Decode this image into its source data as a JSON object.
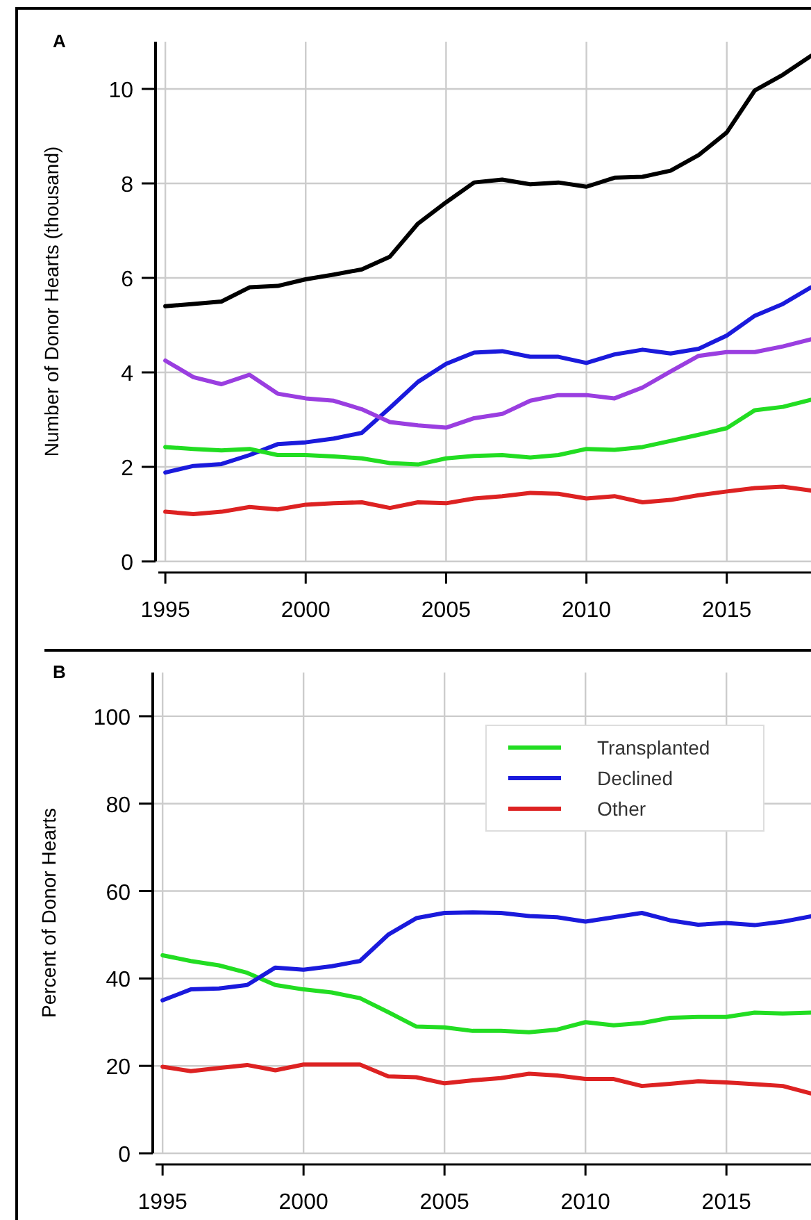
{
  "chart_data": [
    {
      "type": "line",
      "title": "A",
      "ylabel": "Number of Donor Hearts (thousand)",
      "x": [
        1995,
        1996,
        1997,
        1998,
        1999,
        2000,
        2001,
        2002,
        2003,
        2004,
        2005,
        2006,
        2007,
        2008,
        2009,
        2010,
        2011,
        2012,
        2013,
        2014,
        2015,
        2016,
        2017,
        2018
      ],
      "xlim": [
        1994.75,
        2018
      ],
      "xticks": [
        1995,
        2000,
        2005,
        2010,
        2015
      ],
      "ylim": [
        0,
        11
      ],
      "yticks": [
        0,
        2,
        4,
        6,
        8,
        10
      ],
      "grid": true,
      "legend": false,
      "series": [
        {
          "color": "#000000",
          "values": [
            5.4,
            5.45,
            5.5,
            5.8,
            5.83,
            5.97,
            6.07,
            6.18,
            6.45,
            7.15,
            7.6,
            8.02,
            8.08,
            7.98,
            8.02,
            7.93,
            8.12,
            8.14,
            8.27,
            8.6,
            9.08,
            9.97,
            10.3,
            10.7
          ]
        },
        {
          "color": "#1a1adc",
          "values": [
            1.88,
            2.02,
            2.06,
            2.25,
            2.48,
            2.52,
            2.6,
            2.72,
            3.25,
            3.8,
            4.18,
            4.42,
            4.45,
            4.33,
            4.33,
            4.2,
            4.38,
            4.48,
            4.4,
            4.5,
            4.78,
            5.2,
            5.45,
            5.8
          ]
        },
        {
          "color": "#9a3ee0",
          "values": [
            4.25,
            3.9,
            3.75,
            3.95,
            3.55,
            3.45,
            3.4,
            3.22,
            2.95,
            2.88,
            2.83,
            3.03,
            3.12,
            3.4,
            3.52,
            3.52,
            3.45,
            3.68,
            4.02,
            4.35,
            4.43,
            4.43,
            4.55,
            4.7
          ]
        },
        {
          "color": "#22dd22",
          "values": [
            2.42,
            2.38,
            2.35,
            2.38,
            2.25,
            2.25,
            2.22,
            2.18,
            2.08,
            2.05,
            2.18,
            2.23,
            2.25,
            2.2,
            2.25,
            2.38,
            2.36,
            2.42,
            2.55,
            2.68,
            2.82,
            3.2,
            3.27,
            3.42
          ]
        },
        {
          "color": "#dd2222",
          "values": [
            1.05,
            1.0,
            1.05,
            1.15,
            1.1,
            1.2,
            1.23,
            1.25,
            1.13,
            1.25,
            1.23,
            1.33,
            1.38,
            1.45,
            1.43,
            1.33,
            1.38,
            1.25,
            1.3,
            1.4,
            1.48,
            1.55,
            1.58,
            1.5
          ]
        }
      ]
    },
    {
      "type": "line",
      "title": "B",
      "ylabel": "Percent of Donor Hearts",
      "x": [
        1995,
        1996,
        1997,
        1998,
        1999,
        2000,
        2001,
        2002,
        2003,
        2004,
        2005,
        2006,
        2007,
        2008,
        2009,
        2010,
        2011,
        2012,
        2013,
        2014,
        2015,
        2016,
        2017,
        2018
      ],
      "xlim": [
        1994.75,
        2018
      ],
      "xticks": [
        1995,
        2000,
        2005,
        2010,
        2015
      ],
      "ylim": [
        0,
        110
      ],
      "yticks": [
        0,
        20,
        40,
        60,
        80,
        100
      ],
      "grid": true,
      "legend": "top right",
      "series": [
        {
          "name": "Transplanted",
          "color": "#22dd22",
          "values": [
            45.3,
            44,
            43,
            41.3,
            38.5,
            37.5,
            36.8,
            35.5,
            32.3,
            29,
            28.8,
            28,
            28,
            27.7,
            28.3,
            30,
            29.3,
            29.8,
            31,
            31.2,
            31.2,
            32.2,
            32,
            32.2
          ]
        },
        {
          "name": "Declined",
          "color": "#1a1adc",
          "values": [
            35,
            37.5,
            37.7,
            38.5,
            42.5,
            42,
            42.8,
            44,
            50,
            53.8,
            55,
            55.1,
            55,
            54.3,
            54,
            53,
            54,
            55,
            53.3,
            52.3,
            52.7,
            52.2,
            53,
            54.2
          ]
        },
        {
          "name": "Other",
          "color": "#dd2222",
          "values": [
            19.8,
            18.8,
            19.5,
            20.2,
            19,
            20.3,
            20.3,
            20.3,
            17.6,
            17.4,
            16,
            16.7,
            17.2,
            18.2,
            17.8,
            17,
            17,
            15.4,
            15.9,
            16.5,
            16.2,
            15.8,
            15.4,
            13.7
          ]
        }
      ]
    }
  ]
}
